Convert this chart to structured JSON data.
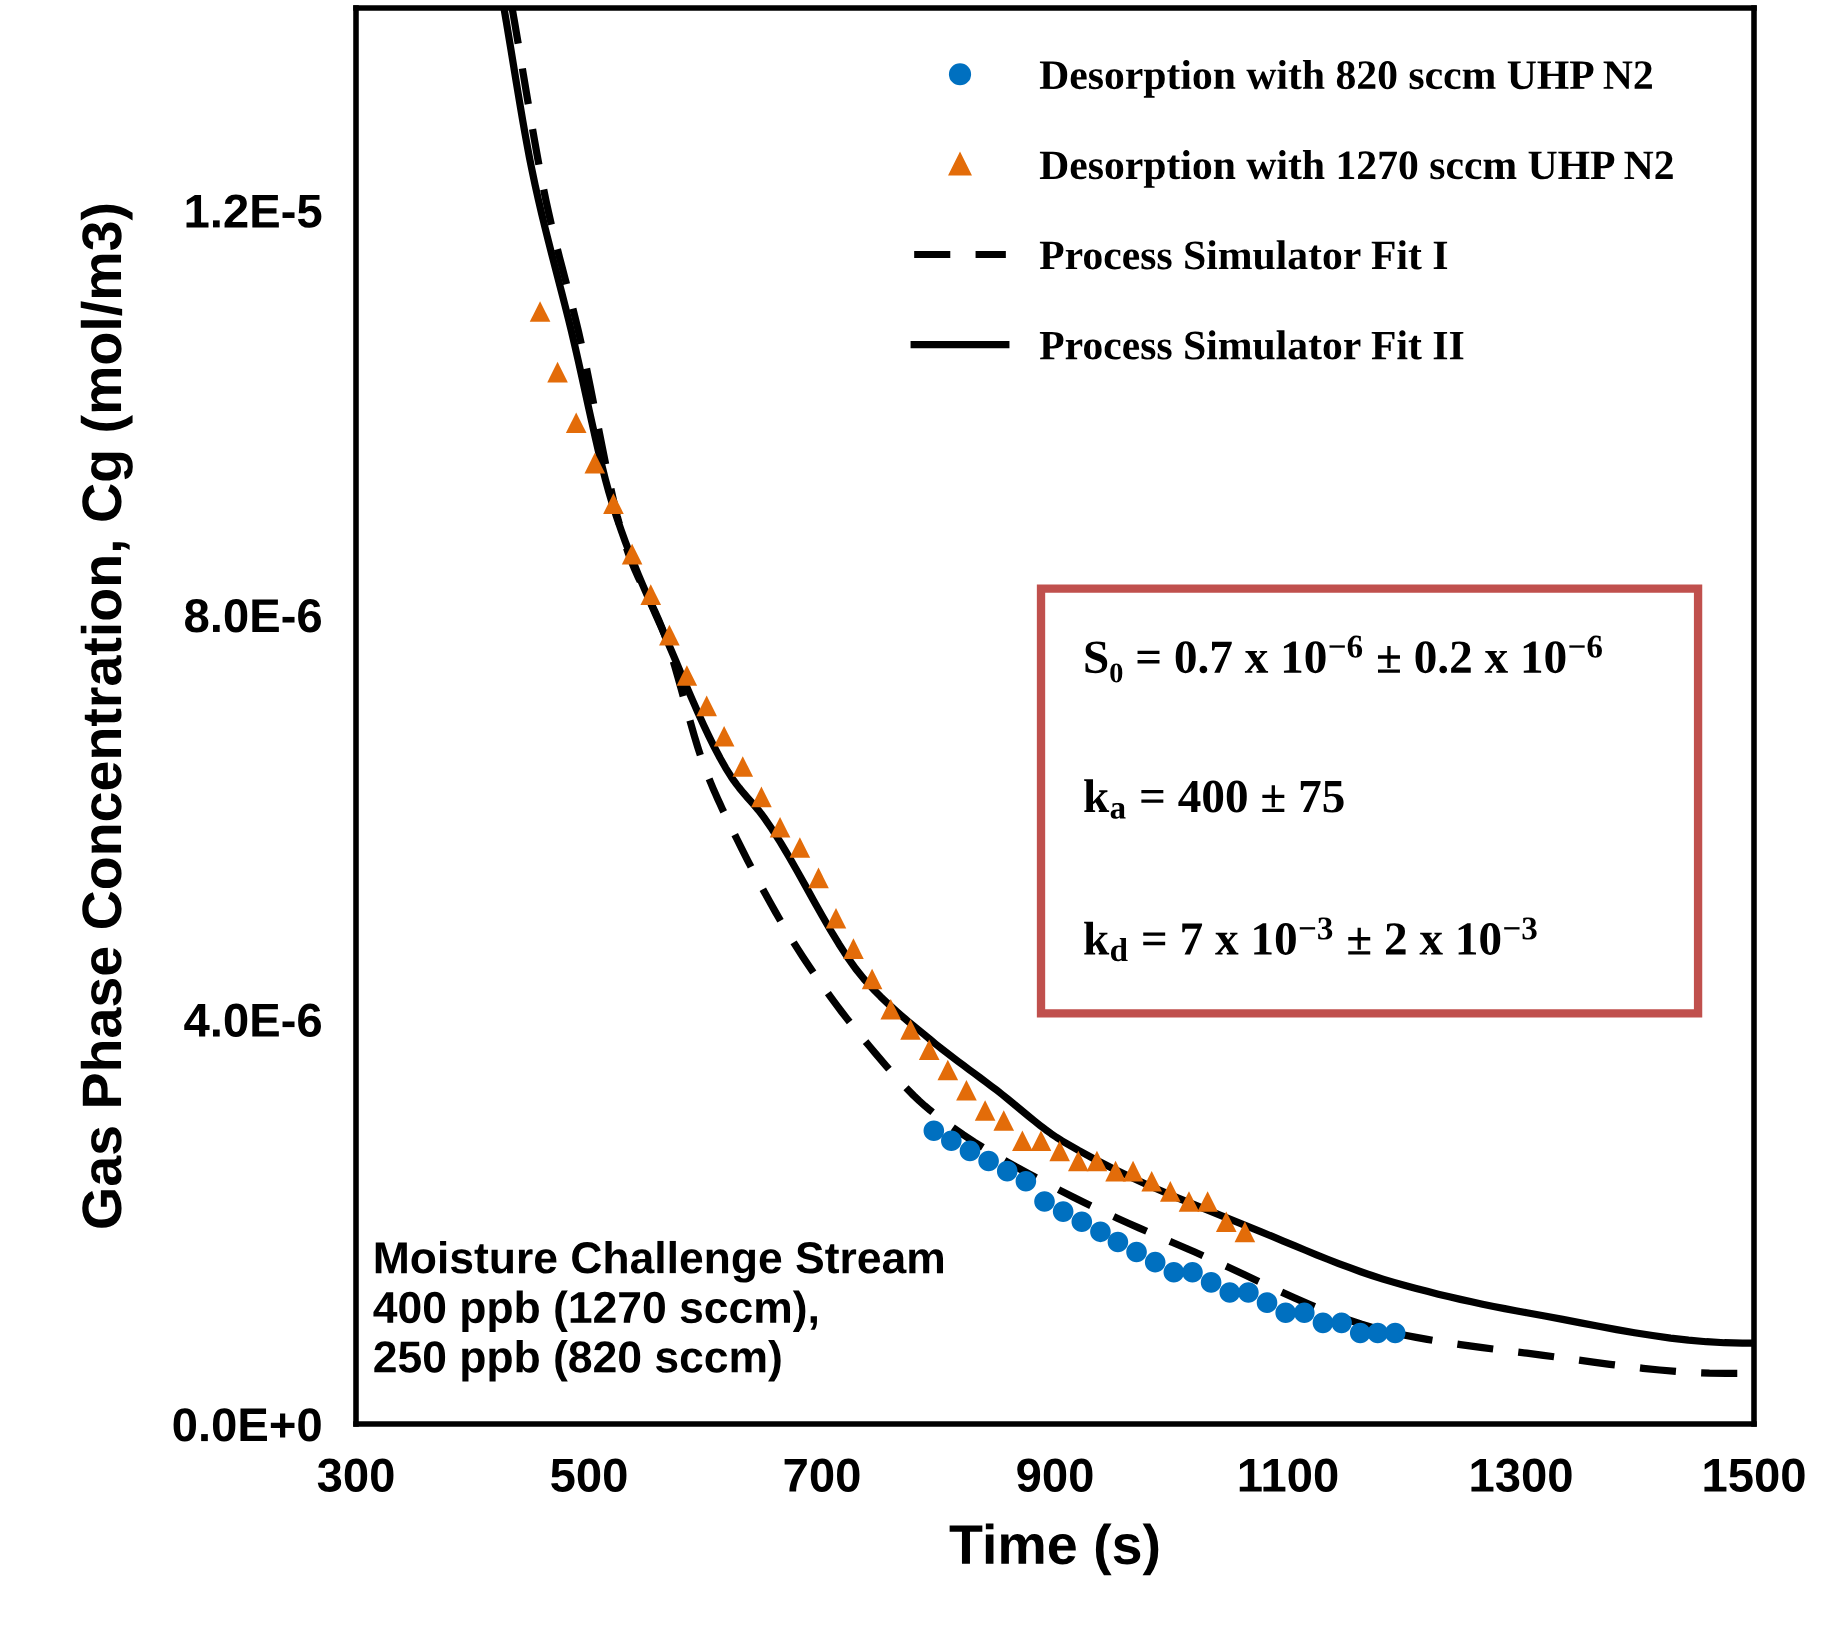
{
  "chart_data": {
    "type": "scatter",
    "xlabel": "Time (s)",
    "ylabel": "Gas Phase Concentration, Cg (mol/m3)",
    "xlim": [
      300,
      1500
    ],
    "xticks": [
      300,
      500,
      700,
      900,
      1100,
      1300,
      1500
    ],
    "ylim": [
      0,
      1.4e-05
    ],
    "yticks": [
      {
        "value": 0,
        "label": "0.0E+0"
      },
      {
        "value": 4e-06,
        "label": "4.0E-6"
      },
      {
        "value": 8e-06,
        "label": "8.0E-6"
      },
      {
        "value": 1.2e-05,
        "label": "1.2E-5"
      }
    ],
    "grid": false,
    "legend": "top right",
    "series": [
      {
        "name": "Desorption with 820 sccm UHP N2",
        "marker": "circle",
        "color": "#0070c0",
        "x": [
          796,
          811,
          827,
          843,
          859,
          875,
          891,
          907,
          923,
          939,
          954,
          970,
          986,
          1002,
          1018,
          1034,
          1050,
          1066,
          1082,
          1098,
          1114,
          1130,
          1146,
          1162,
          1177,
          1192
        ],
        "values": [
          2.9e-06,
          2.8e-06,
          2.7e-06,
          2.6e-06,
          2.5e-06,
          2.4e-06,
          2.2e-06,
          2.1e-06,
          2e-06,
          1.9e-06,
          1.8e-06,
          1.7e-06,
          1.6e-06,
          1.5e-06,
          1.5e-06,
          1.4e-06,
          1.3e-06,
          1.3e-06,
          1.2e-06,
          1.1e-06,
          1.1e-06,
          1e-06,
          1e-06,
          9e-07,
          9e-07,
          9e-07
        ]
      },
      {
        "name": "Desorption with 1270 sccm UHP N2",
        "marker": "triangle",
        "color": "#e36c09",
        "x": [
          458,
          473,
          489,
          505,
          521,
          537,
          553,
          569,
          584,
          601,
          616,
          632,
          648,
          664,
          681,
          697,
          712,
          727,
          743,
          759,
          776,
          792,
          808,
          824,
          840,
          856,
          872,
          888,
          904,
          920,
          936,
          952,
          967,
          983,
          999,
          1015,
          1031,
          1047,
          1063
        ],
        "values": [
          1.1e-05,
          1.04e-05,
          9.9e-06,
          9.5e-06,
          9.1e-06,
          8.6e-06,
          8.2e-06,
          7.8e-06,
          7.4e-06,
          7.1e-06,
          6.8e-06,
          6.5e-06,
          6.2e-06,
          5.9e-06,
          5.7e-06,
          5.4e-06,
          5e-06,
          4.7e-06,
          4.4e-06,
          4.1e-06,
          3.9e-06,
          3.7e-06,
          3.5e-06,
          3.3e-06,
          3.1e-06,
          3e-06,
          2.8e-06,
          2.8e-06,
          2.7e-06,
          2.6e-06,
          2.6e-06,
          2.5e-06,
          2.5e-06,
          2.4e-06,
          2.3e-06,
          2.2e-06,
          2.2e-06,
          2e-06,
          1.9e-06
        ]
      },
      {
        "name": "Process Simulator Fit I",
        "type": "line",
        "line_style": "dashed",
        "marker": "none",
        "color": "#000000",
        "x": [
          434,
          463,
          491,
          531,
          565,
          599,
          622,
          679,
          736,
          793,
          906,
          1020,
          1191,
          1305,
          1476,
          1500
        ],
        "values": [
          1.4e-05,
          1.21e-05,
          1.08e-05,
          8.7e-06,
          7.8e-06,
          6.5e-06,
          5.9e-06,
          4.7e-06,
          3.8e-06,
          3.1e-06,
          2.3e-06,
          1.7e-06,
          9e-07,
          7e-07,
          5e-07,
          5e-07
        ]
      },
      {
        "name": "Process Simulator Fit II",
        "type": "line",
        "line_style": "solid",
        "marker": "none",
        "color": "#000000",
        "x": [
          427,
          451,
          485,
          520,
          565,
          622,
          650,
          736,
          793,
          850,
          906,
          1077,
          1191,
          1305,
          1490,
          1500
        ],
        "values": [
          1.4e-05,
          1.24e-05,
          1.08e-05,
          9.1e-06,
          7.8e-06,
          6.4e-06,
          6e-06,
          4.4e-06,
          3.8e-06,
          3.3e-06,
          2.8e-06,
          1.9e-06,
          1.4e-06,
          1.1e-06,
          8e-07,
          8e-07
        ]
      }
    ],
    "annotations": [
      "Moisture Challenge Stream\n400 ppb (1270 sccm),\n250 ppb (820 sccm)",
      "S₀ = 0.7 x 10$^{−6}$ ± 0.2 x 10$^{−6}$",
      "k$_{a}$ = 400 ± 75",
      "k$_{d}$ = 7 x 10$^{−3}$ ± 2 x 10$^{−3}$"
    ]
  }
}
